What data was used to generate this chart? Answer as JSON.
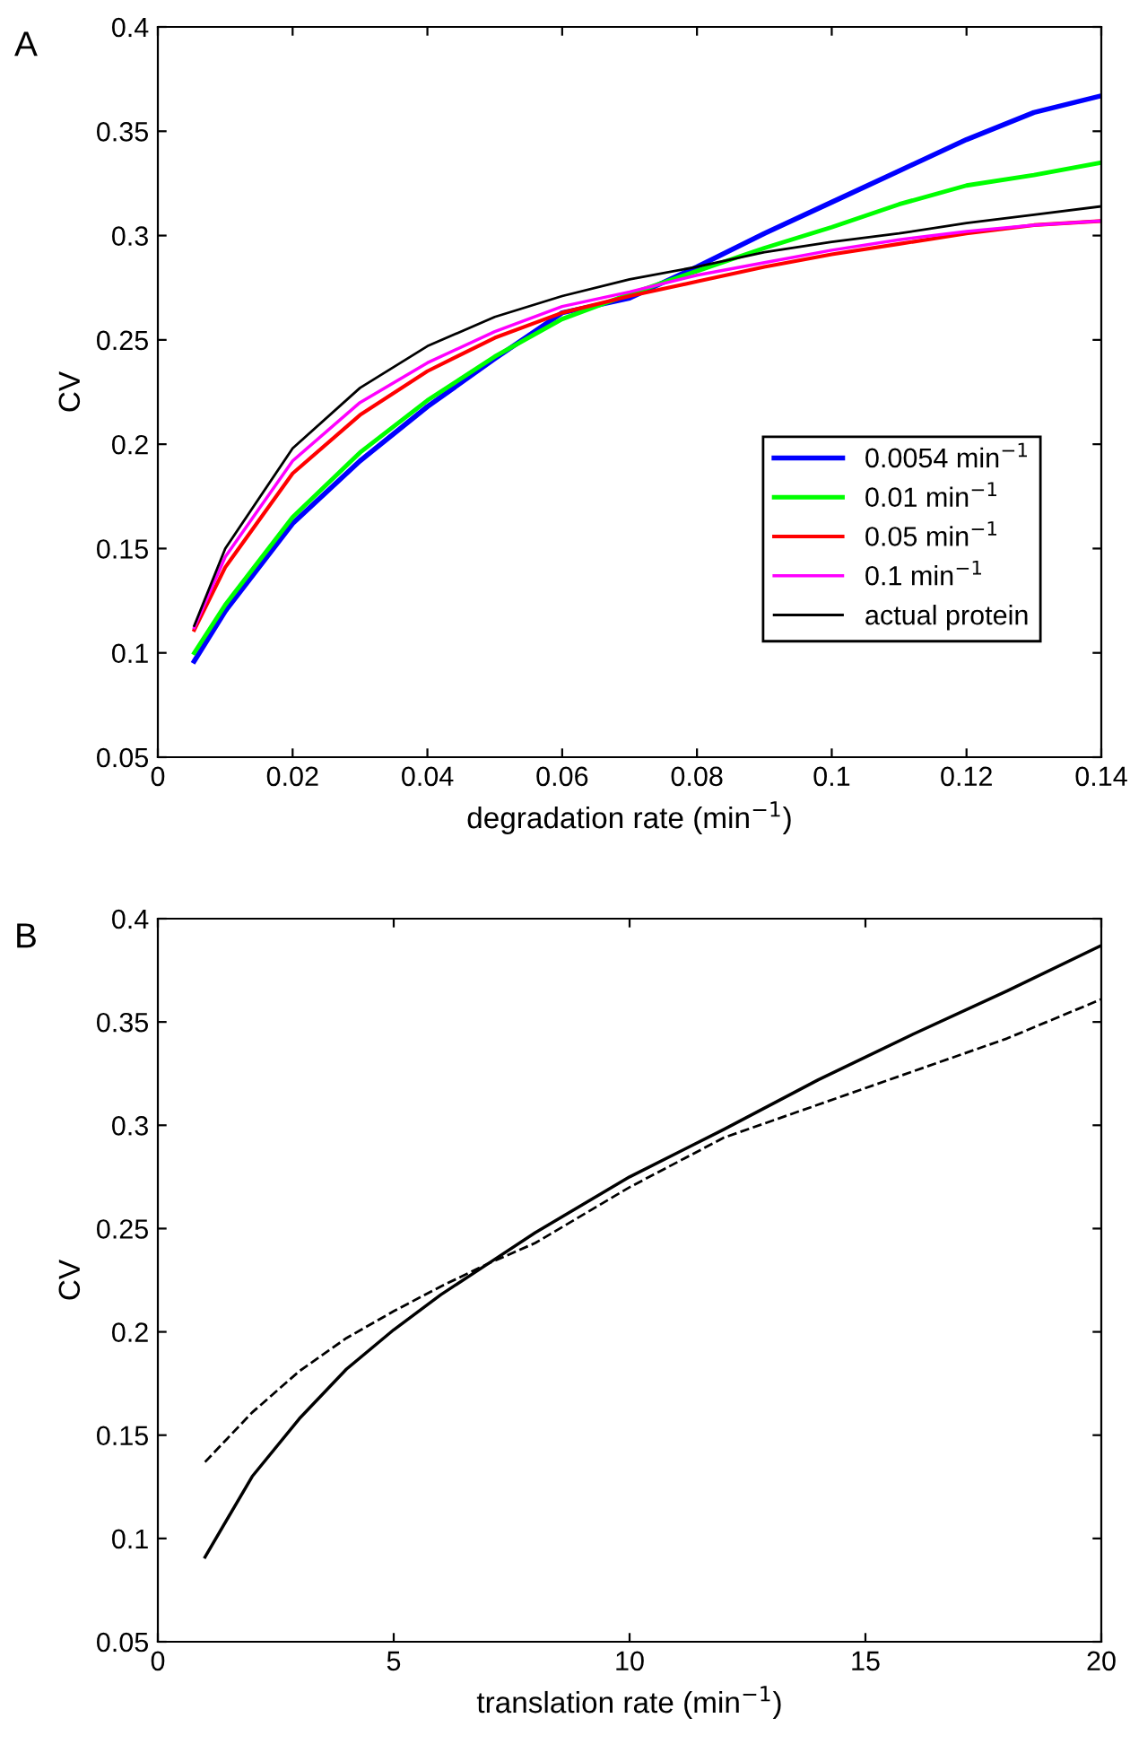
{
  "chart_data": [
    {
      "type": "line",
      "annotations": [
        "A"
      ],
      "xlabel": "degradation rate (min$^{−1}$)",
      "ylabel": "CV",
      "xlim": [
        0,
        0.14
      ],
      "ylim": [
        0.05,
        0.4
      ],
      "xticks": [
        0,
        0.02,
        0.04,
        0.06,
        0.08,
        0.1,
        0.12,
        0.14
      ],
      "yticks": [
        0.05,
        0.1,
        0.15,
        0.2,
        0.25,
        0.3,
        0.35,
        0.4
      ],
      "grid": false,
      "legend": "bottom right",
      "line_style": "solid",
      "x": [
        0.0054,
        0.01,
        0.02,
        0.03,
        0.04,
        0.05,
        0.06,
        0.07,
        0.08,
        0.09,
        0.1,
        0.11,
        0.12,
        0.13,
        0.14
      ],
      "series": [
        {
          "name": "0.0054 min$^{−1}$",
          "color": "#0000ff",
          "values": [
            0.096,
            0.12,
            0.162,
            0.192,
            0.218,
            0.241,
            0.263,
            0.27,
            0.285,
            0.301,
            0.316,
            0.331,
            0.346,
            0.359,
            0.367
          ]
        },
        {
          "name": "0.01 min$^{−1}$",
          "color": "#00ff00",
          "values": [
            0.1,
            0.123,
            0.165,
            0.196,
            0.221,
            0.242,
            0.26,
            0.272,
            0.283,
            0.294,
            0.304,
            0.315,
            0.324,
            0.329,
            0.335
          ]
        },
        {
          "name": "0.05 min$^{−1}$",
          "color": "#ff0000",
          "values": [
            0.111,
            0.141,
            0.186,
            0.214,
            0.235,
            0.251,
            0.263,
            0.271,
            0.278,
            0.285,
            0.291,
            0.296,
            0.301,
            0.305,
            0.307
          ]
        },
        {
          "name": "0.1 min$^{−1}$",
          "color": "#ff00ff",
          "values": [
            0.112,
            0.146,
            0.192,
            0.22,
            0.239,
            0.254,
            0.266,
            0.273,
            0.281,
            0.287,
            0.293,
            0.298,
            0.302,
            0.305,
            0.307
          ]
        },
        {
          "name": "actual protein",
          "color": "#000000",
          "values": [
            0.113,
            0.15,
            0.198,
            0.227,
            0.247,
            0.261,
            0.271,
            0.279,
            0.285,
            0.292,
            0.297,
            0.301,
            0.306,
            0.31,
            0.314
          ]
        }
      ]
    },
    {
      "type": "line",
      "annotations": [
        "B"
      ],
      "xlabel": "translation rate (min$^{−1}$)",
      "ylabel": "CV",
      "xlim": [
        0,
        20
      ],
      "ylim": [
        0.05,
        0.4
      ],
      "xticks": [
        0,
        5,
        10,
        15,
        20
      ],
      "yticks": [
        0.05,
        0.1,
        0.15,
        0.2,
        0.25,
        0.3,
        0.35,
        0.4
      ],
      "grid": false,
      "legend": false,
      "x": [
        1,
        2,
        3,
        4,
        5,
        6,
        7,
        8,
        10,
        12,
        14,
        16,
        18,
        20
      ],
      "series": [
        {
          "color": "#000000",
          "line_style": "solid",
          "values": [
            0.091,
            0.13,
            0.158,
            0.182,
            0.201,
            0.218,
            0.233,
            0.248,
            0.275,
            0.298,
            0.322,
            0.344,
            0.365,
            0.387
          ]
        },
        {
          "color": "#000000",
          "line_style": "dashed",
          "values": [
            0.137,
            0.161,
            0.181,
            0.197,
            0.21,
            0.222,
            0.233,
            0.243,
            0.27,
            0.294,
            0.31,
            0.326,
            0.342,
            0.361
          ]
        }
      ]
    }
  ]
}
